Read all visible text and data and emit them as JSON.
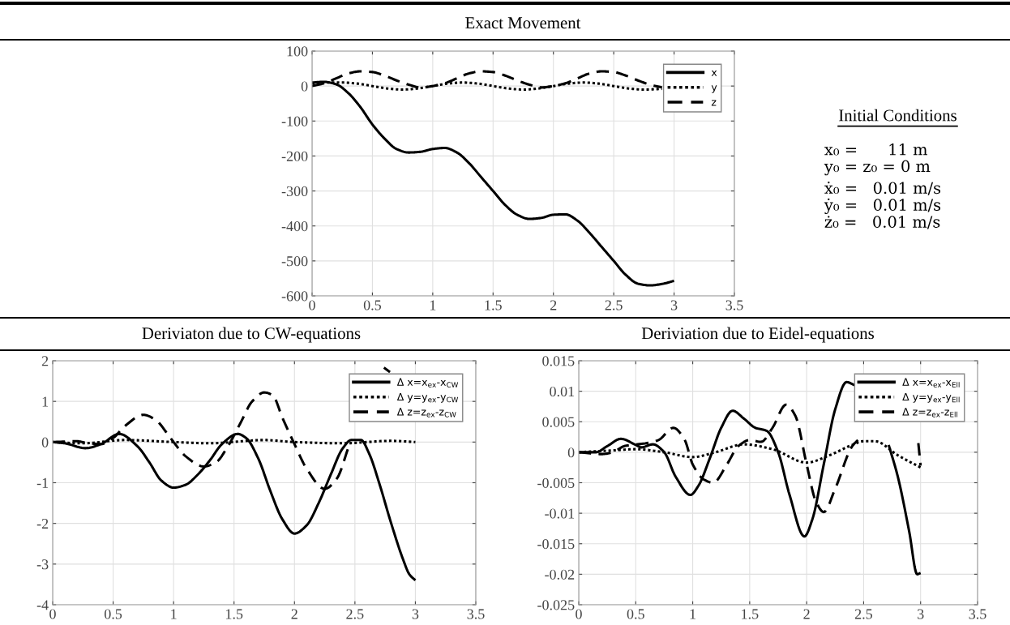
{
  "chart_data": [
    {
      "type": "line",
      "title": "Exact Movement",
      "xlim": [
        0,
        3.5
      ],
      "xticks": [
        0,
        0.5,
        1,
        1.5,
        2,
        2.5,
        3,
        3.5
      ],
      "ylim": [
        -600,
        100
      ],
      "yticks": [
        -600,
        -500,
        -400,
        -300,
        -200,
        -100,
        0,
        100
      ],
      "grid": true,
      "legend": "top right",
      "series": [
        {
          "name": "x",
          "color": "#000000",
          "line_style": "solid",
          "x": [
            0,
            0.1,
            0.2,
            0.3,
            0.4,
            0.5,
            0.6,
            0.7,
            0.8,
            0.9,
            1.0,
            1.1,
            1.2,
            1.3,
            1.4,
            1.5,
            1.6,
            1.7,
            1.8,
            1.9,
            2.0,
            2.1,
            2.2,
            2.3,
            2.4,
            2.5,
            2.6,
            2.7,
            2.8,
            2.9,
            3.0
          ],
          "values": [
            10,
            12,
            5,
            -20,
            -60,
            -110,
            -150,
            -180,
            -190,
            -188,
            -180,
            -177,
            -190,
            -220,
            -260,
            -300,
            -340,
            -368,
            -380,
            -377,
            -368,
            -367,
            -385,
            -420,
            -460,
            -500,
            -540,
            -565,
            -570,
            -566,
            -557
          ]
        },
        {
          "name": "y",
          "color": "#000000",
          "line_style": "dotted",
          "x": [
            0,
            0.125,
            0.25,
            0.375,
            0.5,
            0.625,
            0.75,
            0.875,
            1.0,
            1.125,
            1.25,
            1.375,
            1.5,
            1.625,
            1.75,
            1.875,
            2.0,
            2.125,
            2.25,
            2.375,
            2.5,
            2.625,
            2.75,
            2.9
          ],
          "values": [
            8,
            10,
            10,
            7,
            0,
            -7,
            -10,
            -7,
            0,
            7,
            10,
            7,
            0,
            -7,
            -10,
            -7,
            0,
            7,
            10,
            7,
            0,
            -7,
            -10,
            -8
          ]
        },
        {
          "name": "z",
          "color": "#000000",
          "line_style": "dashed",
          "x": [
            0,
            0.1,
            0.2,
            0.3,
            0.4,
            0.5,
            0.6,
            0.7,
            0.8,
            0.9,
            1.0,
            1.1,
            1.2,
            1.3,
            1.4,
            1.5,
            1.6,
            1.7,
            1.8,
            1.9,
            2.0,
            2.1,
            2.2,
            2.3,
            2.4,
            2.5,
            2.6,
            2.7,
            2.8,
            2.9
          ],
          "values": [
            0,
            8,
            22,
            36,
            42,
            40,
            30,
            16,
            4,
            -4,
            0,
            8,
            22,
            36,
            42,
            40,
            30,
            16,
            4,
            -4,
            0,
            8,
            22,
            36,
            42,
            40,
            30,
            16,
            4,
            -4
          ]
        }
      ]
    },
    {
      "type": "other",
      "title": "Initial Conditions",
      "annotations": [
        "x₀ =      11 m",
        "y₀ = z₀ = 0 m",
        "ẋ₀ =   0.01 m/s",
        "ẏ₀ =   0.01 m/s",
        "ż₀ =   0.01 m/s"
      ]
    },
    {
      "type": "line",
      "title": "Deriviaton due to CW-equations",
      "xlim": [
        0,
        3.5
      ],
      "xticks": [
        0,
        0.5,
        1,
        1.5,
        2,
        2.5,
        3,
        3.5
      ],
      "ylim": [
        -4,
        2
      ],
      "yticks": [
        -4,
        -3,
        -2,
        -1,
        0,
        1,
        2
      ],
      "grid": true,
      "legend": "top right",
      "series": [
        {
          "name": "Δ x=x$_{ex}$-x$_{CW}$",
          "color": "#000000",
          "line_style": "solid",
          "x": [
            0,
            0.1,
            0.27,
            0.4,
            0.55,
            0.7,
            0.8,
            0.9,
            1.0,
            1.1,
            1.2,
            1.3,
            1.4,
            1.53,
            1.6,
            1.7,
            1.8,
            1.9,
            2.0,
            2.1,
            2.2,
            2.3,
            2.4,
            2.47,
            2.55,
            2.62,
            2.7,
            2.8,
            2.9,
            2.95,
            3.0
          ],
          "values": [
            0,
            -0.03,
            -0.15,
            -0.05,
            0.2,
            -0.1,
            -0.5,
            -0.95,
            -1.12,
            -1.05,
            -0.8,
            -0.45,
            -0.05,
            0.2,
            0.1,
            -0.4,
            -1.2,
            -1.9,
            -2.25,
            -2.05,
            -1.5,
            -0.8,
            -0.15,
            0.05,
            0.05,
            -0.3,
            -1.0,
            -2.0,
            -2.9,
            -3.25,
            -3.4
          ]
        },
        {
          "name": "Δ y=y$_{ex}$-y$_{CW}$",
          "color": "#000000",
          "line_style": "dotted",
          "x": [
            0,
            0.25,
            0.6,
            1.0,
            1.3,
            1.75,
            2.0,
            2.4,
            2.8,
            3.0
          ],
          "values": [
            0,
            -0.03,
            0.05,
            0,
            -0.03,
            0.05,
            0,
            -0.03,
            0.03,
            0
          ]
        },
        {
          "name": "Δ z=z$_{ex}$-z$_{CW}$",
          "color": "#000000",
          "line_style": "dashed",
          "x": [
            0,
            0.2,
            0.3,
            0.4,
            0.5,
            0.6,
            0.75,
            0.85,
            0.95,
            1.0,
            1.1,
            1.25,
            1.35,
            1.45,
            1.55,
            1.65,
            1.75,
            1.82,
            1.9,
            2.0,
            2.1,
            2.25,
            2.35,
            2.45,
            2.6,
            2.74,
            2.79
          ],
          "values": [
            0,
            0.02,
            -0.03,
            -0.05,
            0.1,
            0.4,
            0.67,
            0.55,
            0.2,
            0.0,
            -0.35,
            -0.6,
            -0.5,
            -0.1,
            0.45,
            1.0,
            1.22,
            1.15,
            0.6,
            -0.05,
            -0.65,
            -1.15,
            -0.9,
            -0.1,
            null,
            1.83,
            1.72
          ]
        }
      ]
    },
    {
      "type": "line",
      "title": "Deriviation due to Eidel-equations",
      "xlim": [
        0,
        3.5
      ],
      "xticks": [
        0,
        0.5,
        1,
        1.5,
        2,
        2.5,
        3,
        3.5
      ],
      "ylim": [
        -0.025,
        0.015
      ],
      "yticks": [
        -0.025,
        -0.02,
        -0.015,
        -0.01,
        -0.005,
        0,
        0.005,
        0.01,
        0.015
      ],
      "grid": true,
      "legend": "top right",
      "series": [
        {
          "name": "Δ x=x$_{ex}$-x$_{Ell}$",
          "color": "#000000",
          "line_style": "solid",
          "x": [
            0,
            0.15,
            0.25,
            0.37,
            0.5,
            0.55,
            0.65,
            0.75,
            0.85,
            0.98,
            1.05,
            1.15,
            1.25,
            1.35,
            1.45,
            1.55,
            1.65,
            1.75,
            1.85,
            1.98,
            2.05,
            2.15,
            2.25,
            2.35,
            2.42,
            2.6,
            2.72,
            2.8,
            2.9,
            2.97,
            3.0
          ],
          "values": [
            0,
            0,
            0.001,
            0.0022,
            0.0012,
            0.0008,
            0.0013,
            0,
            -0.004,
            -0.007,
            -0.0055,
            -0.001,
            0.004,
            0.0068,
            0.0055,
            0.004,
            0.0035,
            0.0,
            -0.007,
            -0.0138,
            -0.011,
            -0.002,
            0.007,
            0.0115,
            0.011,
            null,
            0.0012,
            -0.004,
            -0.013,
            -0.02,
            -0.0198
          ]
        },
        {
          "name": "Δ y=y$_{ex}$-y$_{Ell}$",
          "color": "#000000",
          "line_style": "dotted",
          "x": [
            0,
            0.3,
            0.5,
            0.75,
            1.0,
            1.2,
            1.45,
            1.7,
            2.0,
            2.2,
            2.4,
            2.5,
            2.6,
            2.8,
            3.0
          ],
          "values": [
            0,
            0.0003,
            0.0005,
            0,
            -0.0008,
            0.0,
            0.0013,
            0.0005,
            -0.0017,
            -0.0005,
            0.0012,
            0.0018,
            0.0018,
            -0.0005,
            -0.0025
          ]
        },
        {
          "name": "Δ z=z$_{ex}$-z$_{Ell}$",
          "color": "#000000",
          "line_style": "dashed",
          "x": [
            0,
            0.2,
            0.3,
            0.4,
            0.6,
            0.7,
            0.83,
            0.93,
            1.0,
            1.1,
            1.18,
            1.3,
            1.4,
            1.5,
            1.6,
            1.7,
            1.82,
            1.9,
            2.0,
            2.08,
            2.15,
            2.25,
            2.4,
            2.45,
            2.7,
            2.98,
            3.0
          ],
          "values": [
            0,
            -0.0003,
            0.0,
            0.001,
            0.0015,
            0.002,
            0.004,
            0.002,
            -0.002,
            -0.0045,
            -0.005,
            -0.002,
            0.001,
            0.002,
            0.0017,
            0.004,
            0.0078,
            0.006,
            -0.002,
            -0.008,
            -0.0098,
            -0.006,
            0.001,
            0.002,
            null,
            0.0015,
            -0.0022
          ]
        }
      ]
    }
  ]
}
